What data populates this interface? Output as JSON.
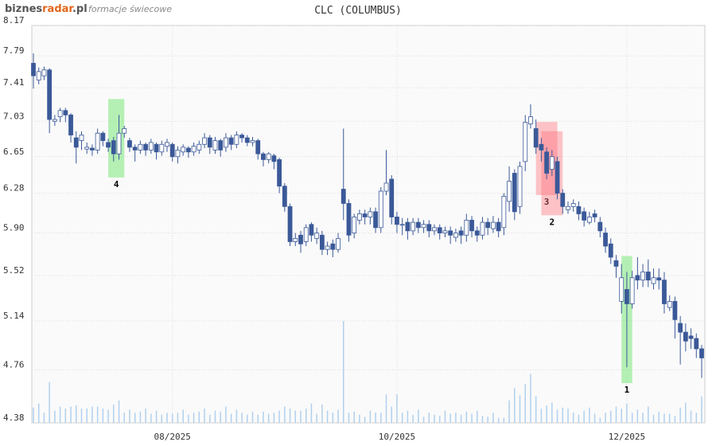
{
  "brand_parts": [
    "biznes",
    "radar",
    ".pl"
  ],
  "subtitle": "formacje świecowe",
  "chart_data": {
    "type": "candlestick",
    "title": "CLC (COLUMBUS)",
    "log_y": true,
    "grid": true,
    "ylim": [
      4.38,
      8.17
    ],
    "yticks": [
      8.17,
      7.79,
      7.41,
      7.03,
      6.65,
      6.28,
      {
        "value": 5.9,
        "label": "5.90"
      },
      5.52,
      5.14,
      4.76,
      4.38
    ],
    "xticks": [
      {
        "value": 26,
        "label": "08/2025"
      },
      {
        "value": 68,
        "label": "10/2025"
      },
      {
        "value": 111,
        "label": "12/2025"
      }
    ],
    "up_color": "#ffffff",
    "down_color": "#3b5998",
    "volume_color": "#b0d0ee",
    "volume_lim": [
      0,
      100
    ],
    "open": [
      7.7,
      7.5,
      7.55,
      7.62,
      7.03,
      7.08,
      7.15,
      7.1,
      6.85,
      6.82,
      6.73,
      6.74,
      6.72,
      6.9,
      6.8,
      6.82,
      6.68,
      6.9,
      6.82,
      6.75,
      6.72,
      6.78,
      6.72,
      6.78,
      6.7,
      6.76,
      6.78,
      6.65,
      6.7,
      6.74,
      6.7,
      6.72,
      6.78,
      6.85,
      6.72,
      6.82,
      6.75,
      6.85,
      6.78,
      6.88,
      6.85,
      6.8,
      6.82,
      6.68,
      6.62,
      6.66,
      6.62,
      6.35,
      6.15,
      5.82,
      5.88,
      5.82,
      5.98,
      5.85,
      5.88,
      5.75,
      5.8,
      5.75,
      6.32,
      6.18,
      5.9,
      6.02,
      6.08,
      6.05,
      6.1,
      5.95,
      6.3,
      6.42,
      6.05,
      5.98,
      6.0,
      5.92,
      6.0,
      5.95,
      5.98,
      5.92,
      5.95,
      5.9,
      5.92,
      5.86,
      5.92,
      5.88,
      6.02,
      5.92,
      5.88,
      6.0,
      5.94,
      6.0,
      5.95,
      6.2,
      6.48,
      6.15,
      6.6,
      7.0,
      6.95,
      6.78,
      6.7,
      6.52,
      6.6,
      6.28,
      6.12,
      6.15,
      6.15,
      6.1,
      6.0,
      6.08,
      6.0,
      5.9,
      5.8,
      5.65,
      5.3,
      5.4,
      5.28,
      5.52,
      5.48,
      5.55,
      5.45,
      5.5,
      5.48,
      5.25,
      5.3,
      5.12,
      5.05,
      5.02,
      5.0,
      4.92
    ],
    "high": [
      7.82,
      7.65,
      7.66,
      7.64,
      7.1,
      7.18,
      7.18,
      7.12,
      6.92,
      6.92,
      6.8,
      6.78,
      6.95,
      6.92,
      6.84,
      6.86,
      7.1,
      6.98,
      6.85,
      6.78,
      6.82,
      6.8,
      6.84,
      6.8,
      6.82,
      6.84,
      6.8,
      6.76,
      6.78,
      6.76,
      6.8,
      6.82,
      6.9,
      6.88,
      6.86,
      6.84,
      6.9,
      6.88,
      6.92,
      6.9,
      6.88,
      6.86,
      6.84,
      6.7,
      6.7,
      6.68,
      6.64,
      6.38,
      6.18,
      5.9,
      5.92,
      5.98,
      6.0,
      5.95,
      5.92,
      5.82,
      5.84,
      5.9,
      6.95,
      6.22,
      6.08,
      6.12,
      6.12,
      6.14,
      6.14,
      6.34,
      6.72,
      6.46,
      6.1,
      6.04,
      6.04,
      6.04,
      6.04,
      6.02,
      6.02,
      5.98,
      5.98,
      5.96,
      5.96,
      5.94,
      5.96,
      6.08,
      6.06,
      5.96,
      6.05,
      6.04,
      6.06,
      6.04,
      6.28,
      6.55,
      6.52,
      6.6,
      7.1,
      7.22,
      7.05,
      6.85,
      6.75,
      6.72,
      6.65,
      6.32,
      6.2,
      6.22,
      6.2,
      6.14,
      6.1,
      6.12,
      6.05,
      5.95,
      5.85,
      5.7,
      5.62,
      5.55,
      5.56,
      5.68,
      5.62,
      5.66,
      5.58,
      5.58,
      5.55,
      5.35,
      5.34,
      5.18,
      5.12,
      5.08,
      5.04,
      4.95
    ],
    "low": [
      7.4,
      7.45,
      7.5,
      6.9,
      6.98,
      7.02,
      7.02,
      6.8,
      6.58,
      6.72,
      6.68,
      6.66,
      6.68,
      6.76,
      6.7,
      6.6,
      6.62,
      6.85,
      6.7,
      6.6,
      6.68,
      6.66,
      6.68,
      6.62,
      6.66,
      6.7,
      6.6,
      6.58,
      6.66,
      6.64,
      6.66,
      6.68,
      6.74,
      6.68,
      6.68,
      6.65,
      6.7,
      6.72,
      6.74,
      6.8,
      6.76,
      6.76,
      6.62,
      6.55,
      6.58,
      6.52,
      6.28,
      6.1,
      5.78,
      5.78,
      5.72,
      5.78,
      5.82,
      5.8,
      5.7,
      5.7,
      5.68,
      5.72,
      6.02,
      5.82,
      5.85,
      5.98,
      5.98,
      5.98,
      5.9,
      5.9,
      6.26,
      5.98,
      5.9,
      5.88,
      5.84,
      5.88,
      5.9,
      5.9,
      5.86,
      5.88,
      5.84,
      5.86,
      5.8,
      5.82,
      5.8,
      5.82,
      5.86,
      5.82,
      5.84,
      5.88,
      5.9,
      5.86,
      5.88,
      6.1,
      6.02,
      6.08,
      6.5,
      6.95,
      6.68,
      6.6,
      6.42,
      6.45,
      6.22,
      6.08,
      6.08,
      6.1,
      6.02,
      5.96,
      5.98,
      6.0,
      5.86,
      5.72,
      5.62,
      5.5,
      5.2,
      4.78,
      5.24,
      5.4,
      5.42,
      5.42,
      5.4,
      5.4,
      5.2,
      5.22,
      5.0,
      4.8,
      4.9,
      4.92,
      4.85,
      4.7
    ],
    "close": [
      7.55,
      7.6,
      7.62,
      7.05,
      7.05,
      7.15,
      7.1,
      6.88,
      6.75,
      6.88,
      6.75,
      6.72,
      6.9,
      6.82,
      6.75,
      6.68,
      6.9,
      6.95,
      6.75,
      6.72,
      6.78,
      6.72,
      6.8,
      6.7,
      6.78,
      6.8,
      6.65,
      6.72,
      6.75,
      6.7,
      6.76,
      6.78,
      6.85,
      6.75,
      6.82,
      6.72,
      6.85,
      6.78,
      6.88,
      6.85,
      6.8,
      6.82,
      6.68,
      6.62,
      6.68,
      6.6,
      6.35,
      6.15,
      5.82,
      5.85,
      5.8,
      5.95,
      5.88,
      5.9,
      5.75,
      5.78,
      5.75,
      5.85,
      6.18,
      5.88,
      6.05,
      6.08,
      6.05,
      6.1,
      5.95,
      6.3,
      6.38,
      6.05,
      5.98,
      5.98,
      5.92,
      6.0,
      5.95,
      5.98,
      5.92,
      5.95,
      5.9,
      5.92,
      5.88,
      5.9,
      5.88,
      6.02,
      5.92,
      5.88,
      6.0,
      5.95,
      6.0,
      5.92,
      6.25,
      6.4,
      6.1,
      6.55,
      7.02,
      7.08,
      6.75,
      6.72,
      6.48,
      6.65,
      6.28,
      6.15,
      6.15,
      6.18,
      6.08,
      6.02,
      6.05,
      6.05,
      5.92,
      5.78,
      5.68,
      5.6,
      5.5,
      5.28,
      5.5,
      5.48,
      5.55,
      5.48,
      5.5,
      5.48,
      5.28,
      5.3,
      5.15,
      5.05,
      4.98,
      5.0,
      4.92,
      4.85
    ],
    "volume": [
      15,
      19,
      10,
      40,
      12,
      16,
      14,
      16,
      17,
      14,
      14,
      16,
      16,
      14,
      13,
      18,
      22,
      10,
      13,
      10,
      11,
      14,
      9,
      12,
      8,
      10,
      9,
      10,
      13,
      8,
      10,
      11,
      14,
      8,
      12,
      11,
      16,
      9,
      13,
      10,
      8,
      11,
      8,
      11,
      9,
      10,
      12,
      16,
      14,
      12,
      12,
      14,
      19,
      9,
      18,
      12,
      10,
      13,
      100,
      10,
      11,
      8,
      6,
      12,
      10,
      10,
      28,
      16,
      28,
      10,
      12,
      8,
      13,
      6,
      10,
      8,
      7,
      12,
      9,
      10,
      8,
      11,
      9,
      12,
      7,
      6,
      10,
      5,
      5,
      22,
      34,
      27,
      38,
      48,
      26,
      14,
      17,
      20,
      13,
      15,
      14,
      10,
      8,
      12,
      15,
      9,
      5,
      10,
      12,
      16,
      14,
      19,
      10,
      13,
      10,
      16,
      8,
      11,
      9,
      9,
      7,
      15,
      20,
      12,
      10,
      26
    ],
    "patterns": [
      {
        "label": "4",
        "start": 15,
        "end": 16,
        "color": "rgba(110,230,110,0.5)"
      },
      {
        "label": "3",
        "start": 95,
        "end": 97,
        "color": "rgba(255,110,120,0.4)"
      },
      {
        "label": "2",
        "start": 96,
        "end": 98,
        "color": "rgba(255,110,120,0.4)"
      },
      {
        "label": "1",
        "start": 111,
        "end": 111,
        "color": "rgba(110,230,110,0.5)"
      }
    ]
  }
}
